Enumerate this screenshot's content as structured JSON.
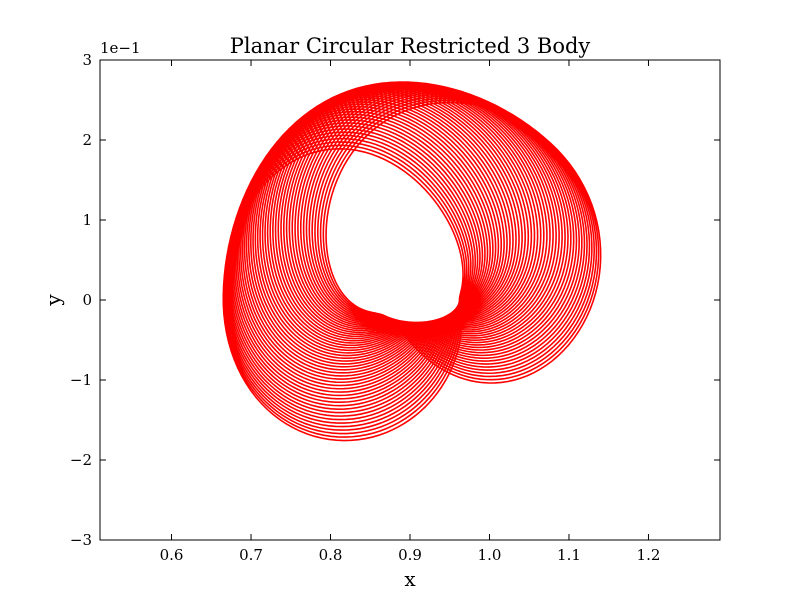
{
  "chart_data": {
    "type": "line",
    "title": "Planar Circular Restricted 3 Body",
    "xlabel": "x",
    "ylabel": "y",
    "y_offset_label": "1e−1",
    "xlim": [
      0.51,
      1.29
    ],
    "ylim": [
      -0.3,
      0.3
    ],
    "x_ticks": [
      0.6,
      0.7,
      0.8,
      0.9,
      1.0,
      1.1,
      1.2
    ],
    "x_tick_labels": [
      "0.6",
      "0.7",
      "0.8",
      "0.9",
      "1.0",
      "1.1",
      "1.2"
    ],
    "y_ticks": [
      -0.3,
      -0.2,
      -0.1,
      0.0,
      0.1,
      0.2,
      0.3
    ],
    "y_tick_labels": [
      "−3",
      "−2",
      "−1",
      "0",
      "1",
      "2",
      "3"
    ],
    "grid": false,
    "series": [
      {
        "name": "trajectory",
        "color": "#ff0000",
        "center": [
          0.905,
          0.0
        ],
        "outer_radius_x": 0.25,
        "outer_radius_y": 0.272,
        "inner_radius_x": 0.055,
        "inner_radius_y": 0.028,
        "loops": 52
      }
    ]
  }
}
